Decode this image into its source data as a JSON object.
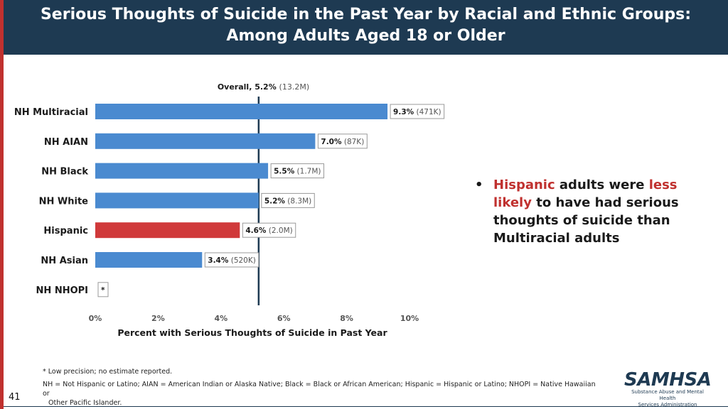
{
  "slide": {
    "title_line1": "Serious Thoughts of Suicide in the Past Year by Racial and Ethnic Groups:",
    "title_line2": "Among Adults Aged 18 or Older",
    "page_number": "41",
    "bullet_parts": [
      "Hispanic",
      " adults were ",
      "less likely",
      " to have had serious thoughts of suicide than Multiracial adults"
    ],
    "footnote1": "* Low precision; no estimate reported.",
    "footnote2a": "NH = Not Hispanic or Latino; AIAN = American Indian or Alaska Native; Black = Black or African American; Hispanic = Hispanic or Latino; NHOPI = Native Hawaiian or",
    "footnote2b": "Other Pacific Islander.",
    "logo_text": "SAMHSA",
    "logo_sub1": "Substance Abuse and Mental Health",
    "logo_sub2": "Services Administration"
  },
  "colors": {
    "header": "#1e3a52",
    "accent": "#c0312f",
    "bar": "#4a8ad0",
    "bar_highlight": "#d0393a"
  },
  "chart_data": {
    "type": "bar",
    "orientation": "horizontal",
    "categories": [
      "NH Multiracial",
      "NH AIAN",
      "NH Black",
      "NH White",
      "Hispanic",
      "NH Asian",
      "NH NHOPI"
    ],
    "values": [
      9.3,
      7.0,
      5.5,
      5.2,
      4.6,
      3.4,
      null
    ],
    "data_labels": [
      "9.3%",
      "7.0%",
      "5.5%",
      "5.2%",
      "4.6%",
      "3.4%",
      "*"
    ],
    "counts": [
      "(471K)",
      "(87K)",
      "(1.7M)",
      "(8.3M)",
      "(2.0M)",
      "(520K)",
      ""
    ],
    "highlight": "Hispanic",
    "reference_line": {
      "value": 5.2,
      "label": "Overall, 5.2%",
      "count": "(13.2M)"
    },
    "xlabel": "Percent with Serious Thoughts of Suicide in Past Year",
    "xlim": [
      0,
      10
    ],
    "xticks": [
      0,
      2,
      4,
      6,
      8,
      10
    ],
    "xtick_labels": [
      "0%",
      "2%",
      "4%",
      "6%",
      "8%",
      "10%"
    ]
  }
}
